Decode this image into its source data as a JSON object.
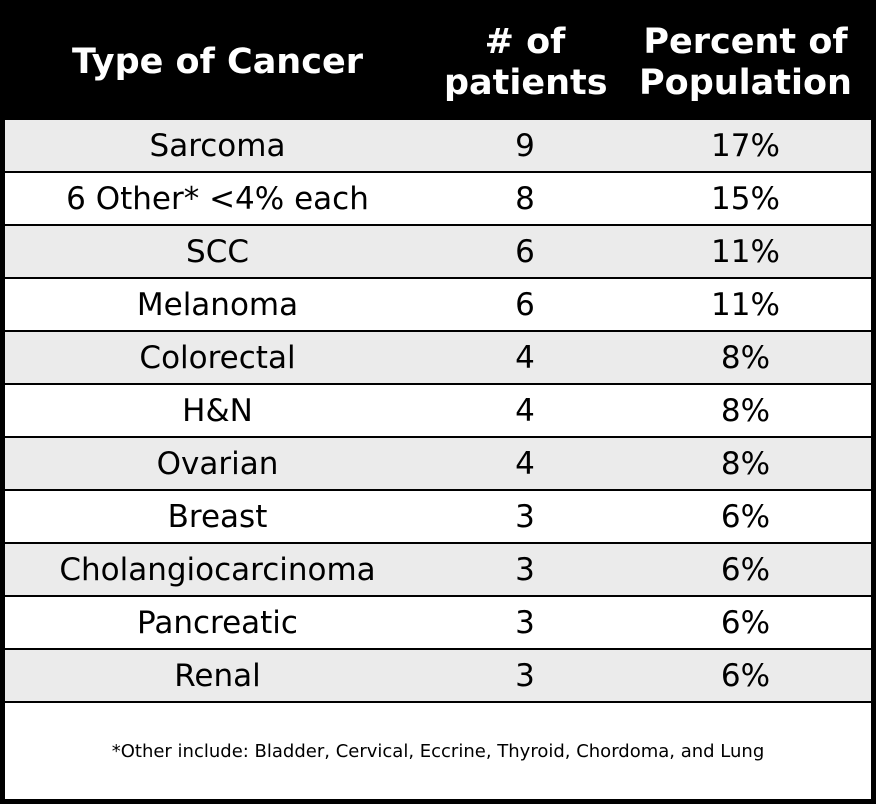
{
  "header": [
    "Type of Cancer",
    "# of patients",
    "Percent of Population"
  ],
  "rows": [
    [
      "Sarcoma",
      "9",
      "17%"
    ],
    [
      "6 Other* <4% each",
      "8",
      "15%"
    ],
    [
      "SCC",
      "6",
      "11%"
    ],
    [
      "Melanoma",
      "6",
      "11%"
    ],
    [
      "Colorectal",
      "4",
      "8%"
    ],
    [
      "H&N",
      "4",
      "8%"
    ],
    [
      "Ovarian",
      "4",
      "8%"
    ],
    [
      "Breast",
      "3",
      "6%"
    ],
    [
      "Cholangiocarcinoma",
      "3",
      "6%"
    ],
    [
      "Pancreatic",
      "3",
      "6%"
    ],
    [
      "Renal",
      "3",
      "6%"
    ]
  ],
  "footnote": "*Other include: Bladder, Cervical, Eccrine, Thyroid, Chordoma, and Lung"
}
